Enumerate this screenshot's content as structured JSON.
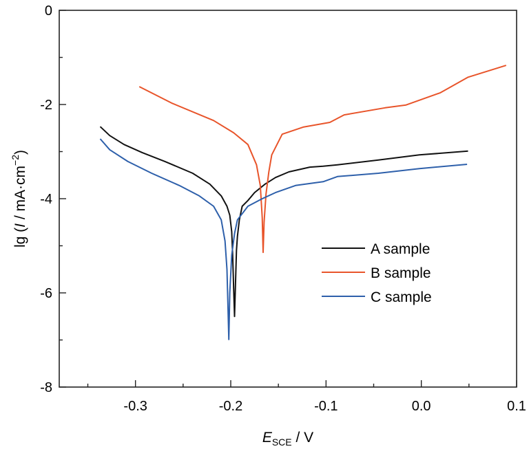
{
  "chart_data": {
    "type": "line",
    "title": "",
    "xlabel": {
      "main": "E",
      "sub": "SCE",
      "rest": " / V"
    },
    "ylabel": {
      "pre": "lg (",
      "italic": "I",
      "mid": " / mA·cm",
      "sup": "−2",
      "post": ")"
    },
    "xlim": [
      -0.38,
      0.1
    ],
    "ylim": [
      -8,
      0
    ],
    "xticks": [
      -0.3,
      -0.2,
      -0.1,
      0.0,
      0.1
    ],
    "xtick_labels": [
      "-0.3",
      "-0.2",
      "-0.1",
      "0.0",
      "0.1"
    ],
    "xminor": [
      -0.35,
      -0.25,
      -0.15,
      -0.05,
      0.05
    ],
    "yticks": [
      0,
      -2,
      -4,
      -6,
      -8
    ],
    "ytick_labels": [
      "0",
      "-2",
      "-4",
      "-6",
      "-8"
    ],
    "yminor": [
      -1,
      -3,
      -5,
      -7
    ],
    "grid": false,
    "legend_position": "lower-right",
    "series": [
      {
        "name": "A sample",
        "color": "#111111",
        "x": [
          -0.337,
          -0.327,
          -0.312,
          -0.293,
          -0.269,
          -0.24,
          -0.222,
          -0.21,
          -0.204,
          -0.201,
          -0.199,
          -0.198,
          -0.197,
          -0.196,
          -0.195,
          -0.194,
          -0.193,
          -0.191,
          -0.188,
          -0.182,
          -0.175,
          -0.164,
          -0.153,
          -0.139,
          -0.117,
          -0.103,
          -0.088,
          -0.045,
          -0.002,
          0.049
        ],
        "y": [
          -2.47,
          -2.66,
          -2.85,
          -3.02,
          -3.21,
          -3.46,
          -3.69,
          -3.94,
          -4.16,
          -4.35,
          -4.7,
          -5.2,
          -5.9,
          -6.5,
          -5.8,
          -5.1,
          -4.8,
          -4.45,
          -4.16,
          -4.04,
          -3.87,
          -3.69,
          -3.55,
          -3.43,
          -3.33,
          -3.31,
          -3.28,
          -3.18,
          -3.07,
          -2.99
        ]
      },
      {
        "name": "B sample",
        "color": "#E8542A",
        "x": [
          -0.296,
          -0.262,
          -0.218,
          -0.197,
          -0.182,
          -0.173,
          -0.169,
          -0.167,
          -0.166,
          -0.165,
          -0.163,
          -0.16,
          -0.157,
          -0.146,
          -0.124,
          -0.096,
          -0.081,
          -0.038,
          -0.016,
          0.02,
          0.049,
          0.089
        ],
        "y": [
          -1.62,
          -1.97,
          -2.34,
          -2.6,
          -2.85,
          -3.28,
          -3.72,
          -4.4,
          -5.14,
          -4.5,
          -3.9,
          -3.43,
          -3.07,
          -2.63,
          -2.48,
          -2.38,
          -2.22,
          -2.07,
          -2.01,
          -1.75,
          -1.42,
          -1.17
        ]
      },
      {
        "name": "C sample",
        "color": "#2D5FAA",
        "x": [
          -0.337,
          -0.327,
          -0.308,
          -0.283,
          -0.254,
          -0.233,
          -0.218,
          -0.21,
          -0.206,
          -0.204,
          -0.203,
          -0.202,
          -0.201,
          -0.199,
          -0.196,
          -0.193,
          -0.182,
          -0.168,
          -0.153,
          -0.132,
          -0.103,
          -0.088,
          -0.045,
          -0.002,
          0.048
        ],
        "y": [
          -2.73,
          -2.96,
          -3.21,
          -3.46,
          -3.72,
          -3.94,
          -4.16,
          -4.45,
          -4.9,
          -5.5,
          -6.2,
          -6.99,
          -6.0,
          -5.2,
          -4.74,
          -4.45,
          -4.16,
          -4.01,
          -3.87,
          -3.72,
          -3.64,
          -3.53,
          -3.46,
          -3.36,
          -3.27
        ]
      }
    ]
  }
}
